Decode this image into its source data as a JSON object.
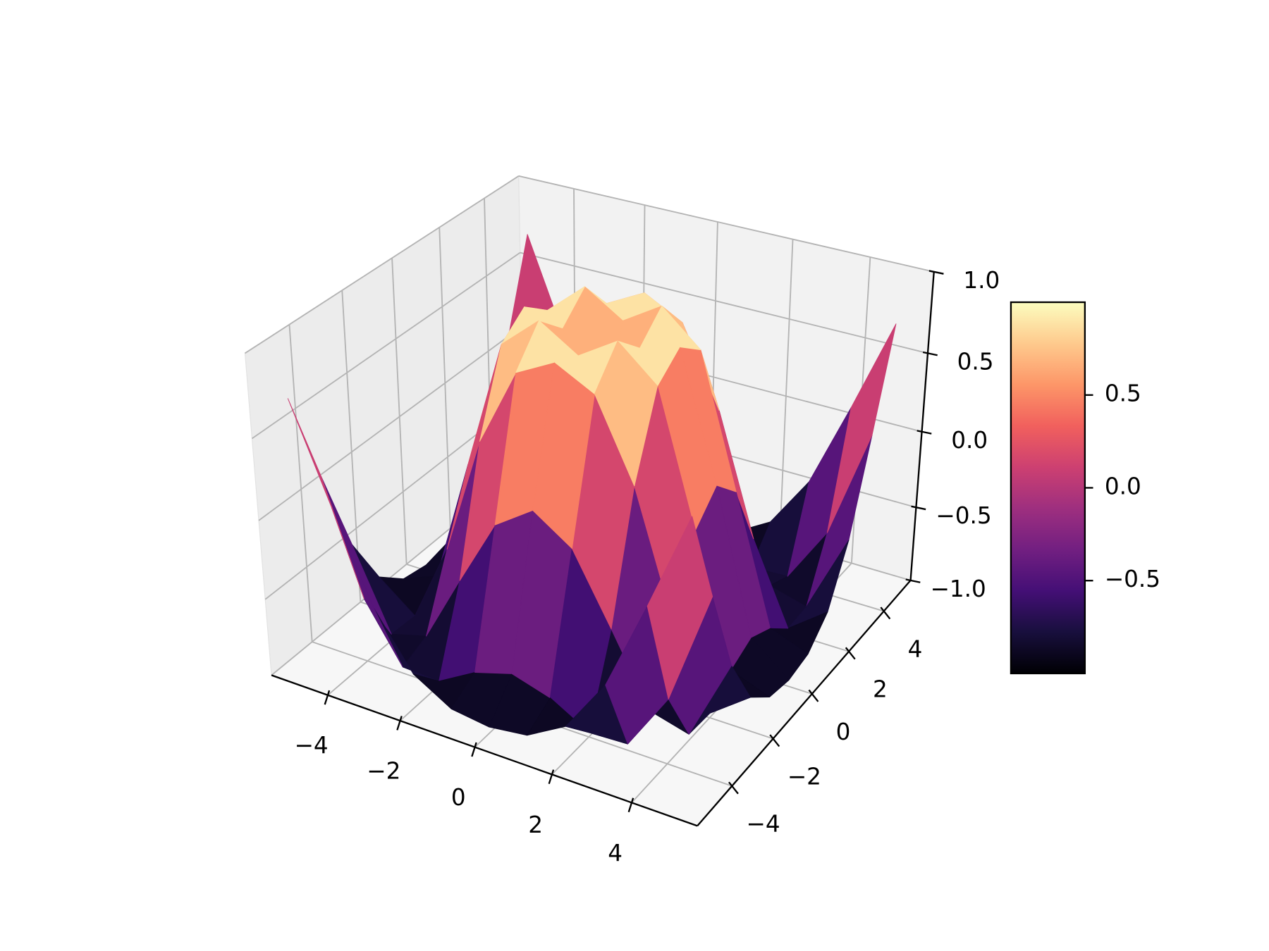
{
  "chart_data": {
    "type": "surface",
    "x": [
      -5,
      -4,
      -3,
      -2,
      -1,
      0,
      1,
      2,
      3,
      4,
      5
    ],
    "y": [
      -5,
      -4,
      -3,
      -2,
      -1,
      0,
      1,
      2,
      3,
      4,
      5
    ],
    "z": [
      [
        0.709,
        0.12,
        -0.437,
        -0.782,
        -0.926,
        -0.959,
        -0.926,
        -0.782,
        -0.437,
        0.12,
        0.709
      ],
      [
        0.12,
        -0.586,
        -0.959,
        -0.971,
        -0.831,
        -0.757,
        -0.831,
        -0.971,
        -0.959,
        -0.586,
        0.12
      ],
      [
        -0.437,
        -0.959,
        -0.892,
        -0.448,
        -0.021,
        0.141,
        -0.021,
        -0.448,
        -0.892,
        -0.959,
        -0.437
      ],
      [
        -0.782,
        -0.971,
        -0.448,
        0.308,
        0.787,
        0.909,
        0.787,
        0.308,
        -0.448,
        -0.971,
        -0.782
      ],
      [
        -0.926,
        -0.831,
        -0.021,
        0.787,
        0.988,
        0.841,
        0.988,
        0.787,
        -0.021,
        -0.831,
        -0.926
      ],
      [
        -0.959,
        -0.757,
        0.141,
        0.909,
        0.841,
        0,
        0.841,
        0.909,
        0.141,
        -0.757,
        -0.959
      ],
      [
        -0.926,
        -0.831,
        -0.021,
        0.787,
        0.988,
        0.841,
        0.988,
        0.787,
        -0.021,
        -0.831,
        -0.926
      ],
      [
        -0.782,
        -0.971,
        -0.448,
        0.308,
        0.787,
        0.909,
        0.787,
        0.308,
        -0.448,
        -0.971,
        -0.782
      ],
      [
        -0.437,
        -0.959,
        -0.892,
        -0.448,
        -0.021,
        0.141,
        -0.021,
        -0.448,
        -0.892,
        -0.959,
        -0.437
      ],
      [
        0.12,
        -0.586,
        -0.959,
        -0.971,
        -0.831,
        -0.757,
        -0.831,
        -0.971,
        -0.959,
        -0.586,
        0.12
      ],
      [
        0.709,
        0.12,
        -0.437,
        -0.782,
        -0.926,
        -0.959,
        -0.926,
        -0.782,
        -0.437,
        0.12,
        0.709
      ]
    ],
    "xlim": [
      -5.6,
      5.6
    ],
    "ylim": [
      -5.6,
      5.6
    ],
    "zlim": [
      -1,
      1
    ],
    "xticks": [
      {
        "value": -4,
        "label": "−4"
      },
      {
        "value": -2,
        "label": "−2"
      },
      0,
      2,
      4
    ],
    "yticks": [
      {
        "value": -4,
        "label": "−4"
      },
      {
        "value": -2,
        "label": "−2"
      },
      0,
      2,
      4
    ],
    "zticks": [
      {
        "value": -1,
        "label": "−1.0"
      },
      {
        "value": -0.5,
        "label": "−0.5"
      },
      {
        "value": 0,
        "label": "0.0"
      },
      0.5,
      {
        "value": 1,
        "label": "1.0"
      }
    ],
    "view": {
      "elev": 30,
      "azim": -60
    },
    "grid": true,
    "colormap": [
      "#000004",
      "#180f3d",
      "#440f76",
      "#721f81",
      "#9e2f7f",
      "#cd4071",
      "#f1605d",
      "#fd9668",
      "#feca8d",
      "#fcfdbf"
    ],
    "colorbar": {
      "clim": [
        -1,
        1
      ],
      "ticks": [
        {
          "value": -0.5,
          "label": "−0.5"
        },
        {
          "value": 0,
          "label": "0.0"
        },
        0.5
      ]
    }
  }
}
